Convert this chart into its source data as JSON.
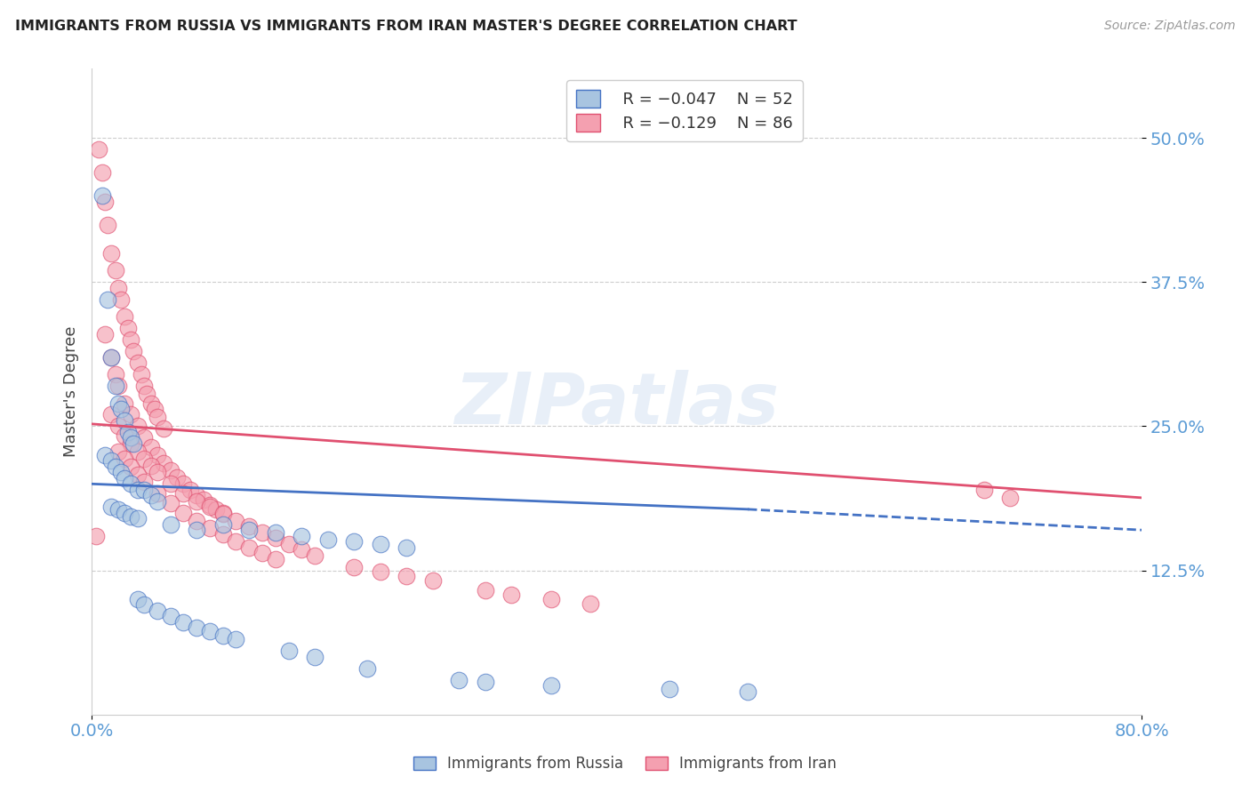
{
  "title": "IMMIGRANTS FROM RUSSIA VS IMMIGRANTS FROM IRAN MASTER'S DEGREE CORRELATION CHART",
  "source": "Source: ZipAtlas.com",
  "ylabel": "Master's Degree",
  "ytick_labels": [
    "50.0%",
    "37.5%",
    "25.0%",
    "12.5%"
  ],
  "ytick_values": [
    0.5,
    0.375,
    0.25,
    0.125
  ],
  "xlim": [
    0.0,
    0.8
  ],
  "ylim": [
    0.0,
    0.56
  ],
  "watermark": "ZIPatlas",
  "legend_r1": "R = −0.047",
  "legend_n1": "N = 52",
  "legend_r2": "R = −0.129",
  "legend_n2": "N = 86",
  "color_russia": "#a8c4e0",
  "color_iran": "#f4a0b0",
  "color_russia_line": "#4472c4",
  "color_iran_line": "#e05070",
  "color_axis_labels": "#5b9bd5",
  "russia_scatter_x": [
    0.008,
    0.012,
    0.015,
    0.018,
    0.02,
    0.022,
    0.025,
    0.028,
    0.03,
    0.032,
    0.01,
    0.015,
    0.018,
    0.022,
    0.025,
    0.03,
    0.035,
    0.04,
    0.045,
    0.05,
    0.015,
    0.02,
    0.025,
    0.03,
    0.035,
    0.06,
    0.08,
    0.1,
    0.12,
    0.14,
    0.16,
    0.18,
    0.2,
    0.22,
    0.24,
    0.035,
    0.04,
    0.05,
    0.06,
    0.07,
    0.08,
    0.09,
    0.1,
    0.11,
    0.15,
    0.17,
    0.21,
    0.28,
    0.3,
    0.35,
    0.44,
    0.5
  ],
  "russia_scatter_y": [
    0.45,
    0.36,
    0.31,
    0.285,
    0.27,
    0.265,
    0.255,
    0.245,
    0.24,
    0.235,
    0.225,
    0.22,
    0.215,
    0.21,
    0.205,
    0.2,
    0.195,
    0.195,
    0.19,
    0.185,
    0.18,
    0.178,
    0.175,
    0.172,
    0.17,
    0.165,
    0.16,
    0.165,
    0.16,
    0.158,
    0.155,
    0.152,
    0.15,
    0.148,
    0.145,
    0.1,
    0.095,
    0.09,
    0.085,
    0.08,
    0.075,
    0.072,
    0.068,
    0.065,
    0.055,
    0.05,
    0.04,
    0.03,
    0.028,
    0.025,
    0.022,
    0.02
  ],
  "iran_scatter_x": [
    0.005,
    0.008,
    0.01,
    0.012,
    0.015,
    0.018,
    0.02,
    0.022,
    0.025,
    0.028,
    0.03,
    0.032,
    0.035,
    0.038,
    0.04,
    0.042,
    0.045,
    0.048,
    0.05,
    0.055,
    0.01,
    0.015,
    0.018,
    0.02,
    0.025,
    0.03,
    0.035,
    0.04,
    0.045,
    0.05,
    0.055,
    0.06,
    0.065,
    0.07,
    0.075,
    0.08,
    0.085,
    0.09,
    0.095,
    0.1,
    0.015,
    0.02,
    0.025,
    0.03,
    0.035,
    0.04,
    0.045,
    0.05,
    0.06,
    0.07,
    0.08,
    0.09,
    0.1,
    0.11,
    0.12,
    0.13,
    0.14,
    0.15,
    0.16,
    0.17,
    0.02,
    0.025,
    0.03,
    0.035,
    0.04,
    0.05,
    0.06,
    0.07,
    0.08,
    0.09,
    0.1,
    0.11,
    0.12,
    0.13,
    0.14,
    0.2,
    0.22,
    0.24,
    0.26,
    0.3,
    0.32,
    0.35,
    0.38,
    0.68,
    0.7,
    0.003
  ],
  "iran_scatter_y": [
    0.49,
    0.47,
    0.445,
    0.425,
    0.4,
    0.385,
    0.37,
    0.36,
    0.345,
    0.335,
    0.325,
    0.315,
    0.305,
    0.295,
    0.285,
    0.278,
    0.27,
    0.265,
    0.258,
    0.248,
    0.33,
    0.31,
    0.295,
    0.285,
    0.27,
    0.26,
    0.25,
    0.24,
    0.232,
    0.225,
    0.218,
    0.212,
    0.206,
    0.2,
    0.195,
    0.19,
    0.186,
    0.182,
    0.178,
    0.175,
    0.26,
    0.25,
    0.242,
    0.235,
    0.228,
    0.222,
    0.216,
    0.21,
    0.2,
    0.192,
    0.185,
    0.18,
    0.174,
    0.168,
    0.163,
    0.158,
    0.153,
    0.148,
    0.143,
    0.138,
    0.228,
    0.222,
    0.215,
    0.208,
    0.202,
    0.192,
    0.183,
    0.175,
    0.168,
    0.162,
    0.156,
    0.15,
    0.145,
    0.14,
    0.135,
    0.128,
    0.124,
    0.12,
    0.116,
    0.108,
    0.104,
    0.1,
    0.096,
    0.195,
    0.188,
    0.155
  ],
  "russia_line_x0": 0.0,
  "russia_line_x1": 0.5,
  "russia_line_x2": 0.8,
  "russia_line_y0": 0.2,
  "russia_line_y1": 0.178,
  "russia_line_y2": 0.16,
  "iran_line_x0": 0.0,
  "iran_line_x1": 0.8,
  "iran_line_y0": 0.252,
  "iran_line_y1": 0.188
}
